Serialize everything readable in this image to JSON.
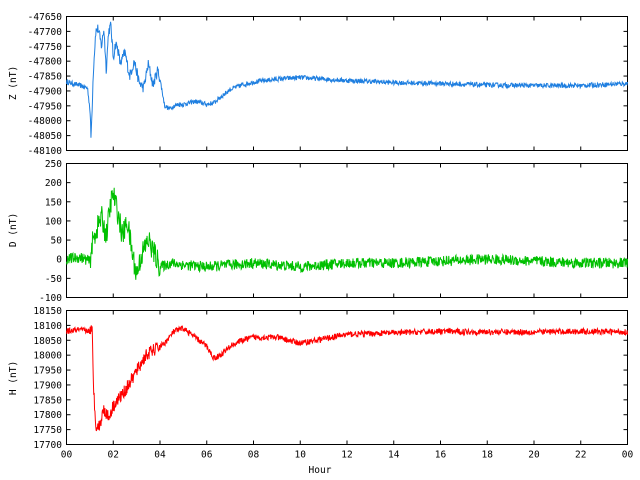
{
  "chart_data": [
    {
      "type": "line",
      "ylabel": "Z (nT)",
      "color": "#1f7fe0",
      "ylim": [
        -48100,
        -47650
      ],
      "yticks": [
        -48100,
        -48050,
        -48000,
        -47950,
        -47900,
        -47850,
        -47800,
        -47750,
        -47700,
        -47650
      ],
      "series": [
        {
          "x": [
            0,
            0.5,
            0.9,
            1.0,
            1.05,
            1.15,
            1.25,
            1.35,
            1.5,
            1.6,
            1.7,
            1.8,
            1.9,
            2.0,
            2.1,
            2.2,
            2.3,
            2.5,
            2.7,
            2.9,
            3.1,
            3.3,
            3.5,
            3.7,
            3.9,
            4.0,
            4.2,
            4.4,
            4.6,
            4.8,
            5.0,
            5.5,
            6.0,
            6.3,
            6.6,
            7.0,
            7.5,
            8.0,
            9.0,
            10.0,
            11.0,
            12.0,
            13.0,
            14.0,
            16.0,
            18.0,
            20.0,
            22.0,
            24.0
          ],
          "values": [
            -47870,
            -47880,
            -47890,
            -47960,
            -48060,
            -47830,
            -47700,
            -47690,
            -47750,
            -47690,
            -47830,
            -47700,
            -47680,
            -47790,
            -47740,
            -47760,
            -47810,
            -47770,
            -47850,
            -47800,
            -47870,
            -47890,
            -47810,
            -47880,
            -47830,
            -47860,
            -47950,
            -47960,
            -47950,
            -47945,
            -47945,
            -47935,
            -47945,
            -47940,
            -47920,
            -47895,
            -47880,
            -47870,
            -47860,
            -47855,
            -47860,
            -47865,
            -47868,
            -47872,
            -47875,
            -47880,
            -47882,
            -47882,
            -47875
          ],
          "noise": 8
        }
      ]
    },
    {
      "type": "line",
      "ylabel": "D (nT)",
      "color": "#00c000",
      "ylim": [
        -100,
        250
      ],
      "yticks": [
        -100,
        -50,
        0,
        50,
        100,
        150,
        200,
        250
      ],
      "series": [
        {
          "x": [
            0,
            0.6,
            1.0,
            1.1,
            1.3,
            1.5,
            1.7,
            1.9,
            2.0,
            2.2,
            2.4,
            2.6,
            2.8,
            3.0,
            3.2,
            3.5,
            3.8,
            4.0,
            4.5,
            5.0,
            6.0,
            7.0,
            8.0,
            9.0,
            10.0,
            11.0,
            12.0,
            14.0,
            16.0,
            18.0,
            20.0,
            22.0,
            24.0
          ],
          "values": [
            0,
            5,
            -5,
            40,
            80,
            110,
            60,
            150,
            170,
            120,
            60,
            100,
            20,
            -40,
            10,
            50,
            10,
            -20,
            -10,
            -15,
            -20,
            -15,
            -10,
            -15,
            -20,
            -15,
            -10,
            -10,
            -5,
            0,
            -5,
            -10,
            -10
          ],
          "noise": 14
        }
      ]
    },
    {
      "type": "line",
      "ylabel": "H (nT)",
      "color": "#ff0000",
      "xlabel": "Hour",
      "ylim": [
        17700,
        18150
      ],
      "yticks": [
        17700,
        17750,
        17800,
        17850,
        17900,
        17950,
        18000,
        18050,
        18100,
        18150
      ],
      "x_ticklabels": [
        "00",
        "02",
        "04",
        "06",
        "08",
        "10",
        "12",
        "14",
        "16",
        "18",
        "20",
        "22",
        "00"
      ],
      "series": [
        {
          "x": [
            0,
            0.5,
            1.1,
            1.15,
            1.25,
            1.4,
            1.6,
            1.8,
            2.0,
            2.2,
            2.5,
            2.8,
            3.1,
            3.4,
            3.8,
            4.2,
            4.6,
            5.0,
            5.5,
            6.0,
            6.3,
            6.6,
            7.0,
            7.5,
            8.0,
            9.0,
            9.5,
            10.0,
            11.0,
            12.0,
            14.0,
            16.0,
            18.0,
            20.0,
            22.0,
            24.0
          ],
          "values": [
            18080,
            18085,
            18080,
            17900,
            17770,
            17760,
            17820,
            17790,
            17830,
            17850,
            17880,
            17920,
            17960,
            18000,
            18020,
            18040,
            18080,
            18090,
            18060,
            18030,
            17990,
            18000,
            18030,
            18050,
            18060,
            18060,
            18050,
            18040,
            18055,
            18070,
            18075,
            18080,
            18078,
            18078,
            18080,
            18078
          ],
          "noise": 10
        }
      ]
    }
  ]
}
